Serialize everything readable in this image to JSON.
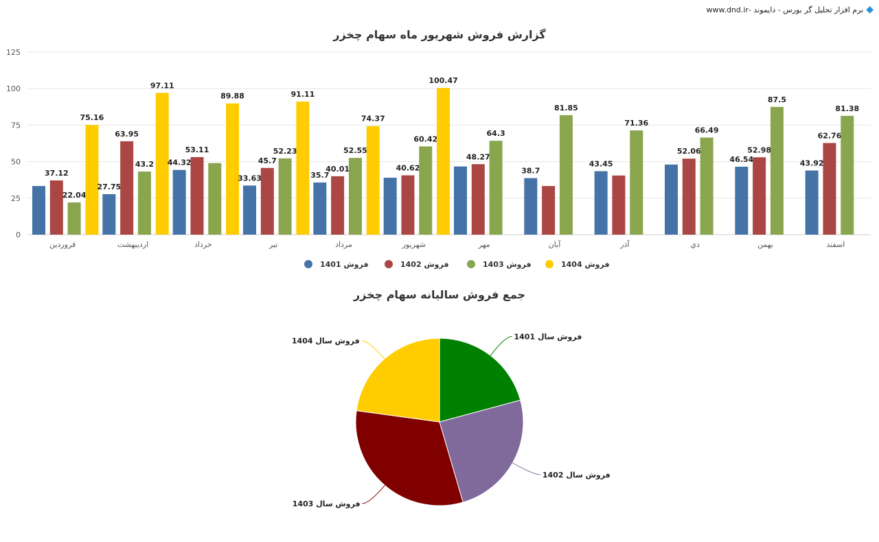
{
  "brand": {
    "text": "نرم افزار تحلیل گر بورس - دایموند -www.dnd.ir",
    "icon": "diamond-icon"
  },
  "chart_data": [
    {
      "type": "bar",
      "title": "گزارش فروش شهریور ماه سهام چخزر",
      "categories": [
        "فروردین",
        "اردیبهشت",
        "خرداد",
        "تیر",
        "مرداد",
        "شهریور",
        "مهر",
        "آبان",
        "آذر",
        "دي",
        "بهمن",
        "اسفند"
      ],
      "ylim": [
        0,
        125
      ],
      "yticks": [
        0,
        25,
        50,
        75,
        100,
        125
      ],
      "grid": true,
      "legend_placement": "bottom",
      "series": [
        {
          "name": "فروش 1401",
          "color": "#4572a7",
          "values": [
            33.3,
            27.75,
            44.32,
            33.63,
            35.7,
            39,
            46.7,
            38.7,
            43.45,
            48,
            46.54,
            43.92
          ],
          "labels": [
            "",
            "27.75",
            "44.32",
            "33.63",
            "35.7",
            "",
            "",
            "38.7",
            "43.45",
            "",
            "46.54",
            "43.92"
          ]
        },
        {
          "name": "فروش 1402",
          "color": "#aa4643",
          "values": [
            37.12,
            63.95,
            53.11,
            45.7,
            40.01,
            40.62,
            48.27,
            33.3,
            40.5,
            52.06,
            52.98,
            62.76
          ],
          "labels": [
            "37.12",
            "63.95",
            "53.11",
            "45.7",
            "40.01",
            "40.62",
            "48.27",
            "",
            "",
            "52.06",
            "52.98",
            "62.76"
          ]
        },
        {
          "name": "فروش 1403",
          "color": "#89a54e",
          "values": [
            22.04,
            43.2,
            49,
            52.23,
            52.55,
            60.42,
            64.3,
            81.85,
            71.36,
            66.49,
            87.5,
            81.38
          ],
          "labels": [
            "22.04",
            "43.2",
            "",
            "52.23",
            "52.55",
            "60.42",
            "64.3",
            "81.85",
            "71.36",
            "66.49",
            "87.5",
            "81.38"
          ]
        },
        {
          "name": "فروش 1404",
          "color": "#ffcc00",
          "values": [
            75.16,
            97.11,
            89.88,
            91.11,
            74.37,
            100.47,
            null,
            null,
            null,
            null,
            null,
            null
          ],
          "labels": [
            "75.16",
            "97.11",
            "89.88",
            "91.11",
            "74.37",
            "100.47",
            "",
            "",
            "",
            "",
            "",
            ""
          ]
        }
      ]
    },
    {
      "type": "pie",
      "title": "جمع فروش سالیانه سهام چخزر",
      "slices": [
        {
          "name": "فروش سال 1401",
          "value": 481,
          "color": "#008000"
        },
        {
          "name": "فروش سال 1402",
          "value": 570,
          "color": "#80699b"
        },
        {
          "name": "فروش سال 1403",
          "value": 732,
          "color": "#800000"
        },
        {
          "name": "فروش سال 1404",
          "value": 528,
          "color": "#ffcc00"
        }
      ]
    }
  ]
}
